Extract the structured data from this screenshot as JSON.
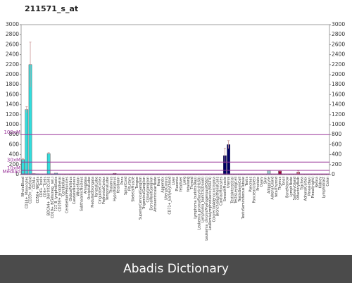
{
  "chart_data": {
    "type": "bar",
    "title": "211571_s_at",
    "categories": [
      "WholeBlood",
      "CD14+_Monocytes",
      "CD33+_Myeloid",
      "CD34+",
      "CD56+_NKCells",
      "CD4+_Tcells",
      "CD8+_Tcells",
      "BDCA4+_DentriticCells",
      "CD19+_BCells(neg._sel.)",
      "721_B_lymphoblasts",
      "CD105+_Endothelial",
      "Cerebellum",
      "CerebellumPeduncles",
      "GlobusPallidus",
      "CaudateNucleus",
      "WholeBrain",
      "SubthalamicNucleus",
      "Amygdala",
      "OccipitalLobe",
      "MedullaOblongata",
      "ParietalLobe",
      "CingulateCortex",
      "PrefrontalCortex",
      "TemporalLobe",
      "Thalamus",
      "Hypothalamus",
      "fetalbrain",
      "Pons",
      "SpinalCord",
      "Pituitary",
      "SkeletalMuscle",
      "Tongue",
      "SuperiorCervicalGanglion",
      "TrigeminalGanglion",
      "CiliaryGanglion",
      "DorsalRootGanglion",
      "AtrioventricularNode",
      "Heart",
      "Appendix",
      "UterusCorpus",
      "CD71+_EarlyErythroid",
      "Liver",
      "Placenta",
      "fetalliver",
      "Lung",
      "fetallung",
      "Thyroid",
      "Lymphoma_burkitts(Raji)",
      "Leukemia_promyelocytic(HL60)",
      "Lymphoma_burkitts(Daudi)",
      "Leukemia_chronicMyelogenous(K562)",
      "Leukemialymphoblastic(MOLT4)",
      "ColorectalAdenocarcinoma",
      "BronchialEpithelialCells",
      "CardiacMyocytes",
      "SmoothMuscle",
      "Uterus",
      "TestisInterstitial",
      "TestisLeydigCell",
      "TestisGermCell",
      "TestisSeminiferousTubule",
      "Testis",
      "Pancreas",
      "PancreaticIslets",
      "Prostate",
      "Ovary",
      "Skin",
      "Adipocyte",
      "AdrenalGland",
      "fetalThyroid",
      "Thymus",
      "Tonsil",
      "BoneMarrow",
      "LymphNode",
      "SalivaryGland",
      "OlfactoryBulb",
      "Trachea",
      "AdrenalCortex",
      "Pineal(day)",
      "Pineal(night)",
      "Retina",
      "Kidney",
      "Lymphoblast",
      "Colon"
    ],
    "values": [
      300,
      1300,
      2200,
      20,
      15,
      10,
      10,
      420,
      15,
      30,
      10,
      8,
      8,
      8,
      8,
      8,
      8,
      8,
      8,
      8,
      8,
      8,
      8,
      8,
      8,
      25,
      8,
      8,
      8,
      8,
      8,
      8,
      8,
      8,
      8,
      8,
      8,
      8,
      8,
      8,
      8,
      8,
      8,
      8,
      8,
      8,
      8,
      8,
      8,
      8,
      8,
      8,
      8,
      8,
      8,
      380,
      600,
      8,
      8,
      8,
      8,
      8,
      8,
      8,
      8,
      8,
      8,
      80,
      8,
      8,
      70,
      8,
      8,
      8,
      8,
      50,
      8,
      8,
      8,
      8,
      8,
      8,
      8,
      8
    ],
    "errors": [
      20,
      60,
      450,
      0,
      0,
      0,
      0,
      20,
      0,
      0,
      0,
      0,
      0,
      0,
      0,
      0,
      0,
      0,
      0,
      0,
      0,
      0,
      0,
      0,
      0,
      0,
      0,
      0,
      0,
      0,
      0,
      0,
      0,
      0,
      0,
      0,
      0,
      0,
      0,
      0,
      0,
      0,
      0,
      0,
      0,
      0,
      0,
      0,
      0,
      0,
      0,
      0,
      0,
      0,
      0,
      150,
      80,
      0,
      0,
      0,
      0,
      0,
      0,
      0,
      0,
      0,
      0,
      0,
      0,
      0,
      0,
      0,
      0,
      0,
      0,
      25,
      0,
      0,
      0,
      0,
      0,
      0,
      0,
      0
    ],
    "colors": [
      "#33dddd",
      "#33dddd",
      "#33dddd",
      "#33dddd",
      "#33dddd",
      "#33dddd",
      "#33dddd",
      "#33dddd",
      "#33dddd",
      "#33dddd",
      "#33dddd",
      "#cc9966",
      "#cc9966",
      "#cc9966",
      "#cc9966",
      "#cc9966",
      "#cc9966",
      "#cc9966",
      "#cc9966",
      "#cc9966",
      "#cc9966",
      "#cc9966",
      "#cc9966",
      "#cc9966",
      "#cc9966",
      "#330033",
      "#cc9966",
      "#cc9966",
      "#cc9966",
      "#cc9966",
      "#6666cc",
      "#6666cc",
      "#6666cc",
      "#6666cc",
      "#6666cc",
      "#6666cc",
      "#6666cc",
      "#6666cc",
      "#6666cc",
      "#6666cc",
      "#996633",
      "#996633",
      "#996633",
      "#996633",
      "#996633",
      "#996633",
      "#996633",
      "#996633",
      "#996633",
      "#996633",
      "#000066",
      "#000066",
      "#000066",
      "#000066",
      "#000066",
      "#000066",
      "#000066",
      "#000066",
      "#000066",
      "#000066",
      "#000066",
      "#99cccc",
      "#99cccc",
      "#99cccc",
      "#99cccc",
      "#99cccc",
      "#99cccc",
      "#99cccc",
      "#99cccc",
      "#99cccc",
      "#990033",
      "#990033",
      "#990033",
      "#990033",
      "#990033",
      "#cc6677",
      "#990033",
      "#990033",
      "#990033",
      "#990033",
      "#990033",
      "#990033",
      "#990033",
      "#990033"
    ],
    "ylim": [
      0,
      3000
    ],
    "yticks": [
      0,
      200,
      400,
      600,
      800,
      1000,
      1200,
      1400,
      1600,
      1800,
      2000,
      2200,
      2400,
      2600,
      2800,
      3000
    ],
    "reference_lines": [
      {
        "label": "100xM",
        "value": 800
      },
      {
        "label": "30xM",
        "value": 250
      },
      {
        "label": "10xM",
        "value": 84
      },
      {
        "label": "Median",
        "value": 12
      }
    ],
    "reference_color": "#993399",
    "caption": "Abadis Dictionary"
  }
}
